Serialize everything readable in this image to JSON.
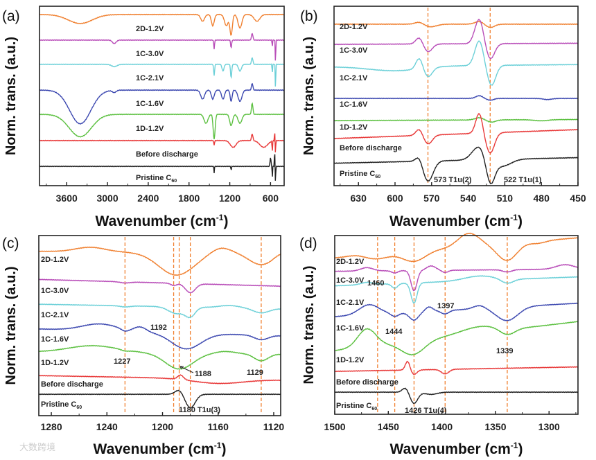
{
  "watermark": "大数跨境",
  "colors": {
    "2D-1.2V": "#f08030",
    "1C-3.0V": "#b84cb8",
    "1C-2.1V": "#6cd0d8",
    "1C-1.6V": "#3c48b0",
    "1D-1.2V": "#5cc040",
    "Before discharge": "#e83838",
    "Pristine C60": "#202020",
    "guide": "#f08030"
  },
  "chart_data": [
    {
      "panel": "(a)",
      "type": "line",
      "xlabel": "Wavenumber (cm-1)",
      "ylabel": "Norm. trans. (a.u.)",
      "xlim": [
        4000,
        400
      ],
      "ylim": [
        0,
        8
      ],
      "xticks": [
        3600,
        3000,
        2400,
        1800,
        1200,
        600
      ],
      "guides": [],
      "annotations": [],
      "series": [
        {
          "name": "2D-1.2V",
          "offset": 7.63,
          "slope": 0,
          "features": [
            [
              3400,
              -0.4,
              250
            ],
            [
              1600,
              -0.3,
              40
            ],
            [
              1450,
              -0.5,
              30
            ],
            [
              1250,
              -0.5,
              40
            ],
            [
              1180,
              -0.9,
              25
            ],
            [
              1050,
              -0.6,
              40
            ],
            [
              800,
              -0.3,
              60
            ]
          ]
        },
        {
          "name": "1C-3.0V",
          "offset": 6.49,
          "slope": 0,
          "features": [
            [
              2900,
              -0.15,
              40
            ],
            [
              1430,
              -0.4,
              8
            ],
            [
              1180,
              -0.35,
              10
            ],
            [
              870,
              0.3,
              15
            ],
            [
              575,
              -0.3,
              5
            ],
            [
              527,
              -1.2,
              5
            ]
          ]
        },
        {
          "name": "1C-2.1V",
          "offset": 5.41,
          "slope": 0,
          "features": [
            [
              2900,
              -0.1,
              60
            ],
            [
              1430,
              -0.5,
              10
            ],
            [
              1300,
              -0.3,
              20
            ],
            [
              1180,
              -0.6,
              12
            ],
            [
              1050,
              -0.3,
              30
            ],
            [
              870,
              0.3,
              15
            ],
            [
              575,
              -0.4,
              5
            ],
            [
              527,
              -1.3,
              5
            ]
          ]
        },
        {
          "name": "1C-1.6V",
          "offset": 4.26,
          "slope": 0,
          "features": [
            [
              3400,
              -1.5,
              220
            ],
            [
              2900,
              -0.1,
              40
            ],
            [
              1600,
              -0.4,
              40
            ],
            [
              1450,
              -0.4,
              30
            ],
            [
              1300,
              -0.4,
              30
            ],
            [
              1180,
              -0.5,
              20
            ],
            [
              1050,
              -0.5,
              40
            ],
            [
              870,
              0.3,
              15
            ]
          ]
        },
        {
          "name": "1D-1.2V",
          "offset": 3.18,
          "slope": 0,
          "features": [
            [
              3400,
              -1.0,
              230
            ],
            [
              1550,
              -0.4,
              40
            ],
            [
              1430,
              -1.1,
              20
            ],
            [
              1180,
              -0.5,
              30
            ],
            [
              1050,
              -0.4,
              40
            ],
            [
              870,
              0.5,
              15
            ]
          ]
        },
        {
          "name": "Before discharge",
          "offset": 2.01,
          "slope": 0,
          "features": [
            [
              1430,
              -0.2,
              8
            ],
            [
              1150,
              -0.3,
              60
            ],
            [
              870,
              0.3,
              15
            ],
            [
              700,
              -0.3,
              80
            ],
            [
              575,
              -0.5,
              5
            ],
            [
              540,
              0.6,
              4
            ],
            [
              527,
              -0.8,
              4
            ]
          ]
        },
        {
          "name": "Pristine C60",
          "offset": 0.86,
          "slope": 0,
          "features": [
            [
              1430,
              -0.3,
              5
            ],
            [
              1180,
              -0.2,
              5
            ],
            [
              600,
              0.4,
              10
            ],
            [
              575,
              -0.6,
              4
            ],
            [
              540,
              0.8,
              5
            ],
            [
              527,
              -1.0,
              4
            ]
          ]
        }
      ]
    },
    {
      "panel": "(b)",
      "type": "line",
      "xlabel": "Wavenumber (cm-1)",
      "ylabel": "Norm. trans. (a.u.)",
      "xlim": [
        650,
        450
      ],
      "ylim": [
        0,
        8
      ],
      "xticks": [
        630,
        600,
        570,
        540,
        510,
        480,
        450
      ],
      "guides": [
        573,
        522
      ],
      "annotations": [
        "573 T1u(2)",
        "522 T1u(1)"
      ],
      "series": [
        {
          "name": "2D-1.2V",
          "offset": 7.2,
          "slope": 0,
          "features": [
            [
              580,
              0.1,
              5
            ],
            [
              571,
              -0.12,
              7
            ],
            [
              531,
              0.12,
              5
            ],
            [
              522,
              -0.15,
              5
            ]
          ]
        },
        {
          "name": "1C-3.0V",
          "offset": 6.3,
          "slope": 0.05,
          "features": [
            [
              580,
              0.3,
              4
            ],
            [
              573,
              -0.35,
              5
            ],
            [
              531,
              1.1,
              5
            ],
            [
              522,
              -0.7,
              5
            ]
          ]
        },
        {
          "name": "1C-2.1V",
          "offset": 5.3,
          "slope": 0.1,
          "features": [
            [
              600,
              -0.2,
              30
            ],
            [
              580,
              0.5,
              4
            ],
            [
              573,
              -0.4,
              5
            ],
            [
              531,
              1.1,
              5
            ],
            [
              521,
              -0.9,
              5
            ]
          ]
        },
        {
          "name": "1C-1.6V",
          "offset": 3.89,
          "slope": 0,
          "features": [
            [
              531,
              0.12,
              4
            ],
            [
              522,
              -0.08,
              4
            ],
            [
              475,
              -0.05,
              5
            ]
          ]
        },
        {
          "name": "1D-1.2V",
          "offset": 2.9,
          "slope": 0.05,
          "features": [
            [
              531,
              0.1,
              5
            ],
            [
              521,
              -0.1,
              5
            ],
            [
              480,
              -0.05,
              8
            ]
          ]
        },
        {
          "name": "Before discharge",
          "offset": 2.1,
          "slope": 0.4,
          "features": [
            [
              580,
              0.3,
              4
            ],
            [
              573,
              -0.4,
              5
            ],
            [
              531,
              0.9,
              4
            ],
            [
              522,
              -0.9,
              5
            ]
          ]
        },
        {
          "name": "Pristine C60",
          "offset": 1.0,
          "slope": 0.25,
          "features": [
            [
              580,
              0.3,
              4
            ],
            [
              573,
              -0.9,
              6
            ],
            [
              531,
              0.6,
              8
            ],
            [
              522,
              -1.1,
              5
            ],
            [
              512,
              -0.3,
              10
            ]
          ]
        }
      ]
    },
    {
      "panel": "(c)",
      "type": "line",
      "xlabel": "Wavenumber (cm-1)",
      "ylabel": "Norm. trans. (a.u.)",
      "xlim": [
        1289,
        1115
      ],
      "ylim": [
        0,
        8
      ],
      "xticks": [
        1280,
        1240,
        1200,
        1160,
        1120
      ],
      "guides": [
        1227,
        1192,
        1188,
        1180,
        1129
      ],
      "annotations": [
        "1192",
        "1227",
        "1188",
        "1129",
        "1180 T1u(3)"
      ],
      "series": [
        {
          "name": "2D-1.2V",
          "offset": 7.3,
          "slope": -0.1,
          "features": [
            [
              1252,
              0.2,
              15
            ],
            [
              1190,
              -1.0,
              18
            ],
            [
              1158,
              0.25,
              10
            ],
            [
              1129,
              -0.5,
              12
            ],
            [
              1115,
              0.1,
              6
            ]
          ]
        },
        {
          "name": "1C-3.0V",
          "offset": 6.05,
          "slope": -0.3,
          "features": [
            [
              1227,
              -0.05,
              5
            ],
            [
              1192,
              -0.1,
              3
            ],
            [
              1180,
              -0.4,
              5
            ]
          ]
        },
        {
          "name": "1C-2.1V",
          "offset": 4.95,
          "slope": -0.2,
          "features": [
            [
              1227,
              -0.05,
              5
            ],
            [
              1190,
              -0.3,
              8
            ],
            [
              1180,
              -0.4,
              5
            ],
            [
              1152,
              0.1,
              10
            ],
            [
              1129,
              -0.2,
              8
            ]
          ]
        },
        {
          "name": "1C-1.6V",
          "offset": 3.85,
          "slope": -0.3,
          "features": [
            [
              1245,
              0.3,
              18
            ],
            [
              1227,
              -0.1,
              4
            ],
            [
              1216,
              0.2,
              6
            ],
            [
              1183,
              -0.7,
              15
            ],
            [
              1129,
              -0.2,
              7
            ]
          ]
        },
        {
          "name": "1D-1.2V",
          "offset": 2.83,
          "slope": -0.1,
          "features": [
            [
              1250,
              0.3,
              25
            ],
            [
              1227,
              -0.05,
              4
            ],
            [
              1188,
              -0.7,
              14
            ],
            [
              1155,
              0.1,
              10
            ],
            [
              1129,
              -0.3,
              7
            ]
          ]
        },
        {
          "name": "Before discharge",
          "offset": 1.78,
          "slope": -0.2,
          "features": [
            [
              1187,
              0.2,
              3
            ],
            [
              1160,
              -0.2,
              25
            ]
          ]
        },
        {
          "name": "Pristine C60",
          "offset": 0.95,
          "slope": 0,
          "features": [
            [
              1188,
              0.2,
              4
            ],
            [
              1180,
              -0.6,
              5
            ]
          ]
        }
      ]
    },
    {
      "panel": "(d)",
      "type": "line",
      "xlabel": "Wavenumber (cm-1)",
      "ylabel": "Norm. trans. (a.u.)",
      "xlim": [
        1500,
        1273
      ],
      "ylim": [
        0,
        8
      ],
      "xticks": [
        1500,
        1450,
        1400,
        1350,
        1300
      ],
      "guides": [
        1460,
        1444,
        1426,
        1397,
        1339
      ],
      "annotations": [
        "1460",
        "1397",
        "1444",
        "1339",
        "1426 T1u(4)"
      ],
      "series": [
        {
          "name": "2D-1.2V",
          "offset": 7.0,
          "slope": 0.9,
          "features": [
            [
              1480,
              0.05,
              10
            ],
            [
              1460,
              -0.2,
              15
            ],
            [
              1426,
              -0.45,
              15
            ],
            [
              1375,
              0.6,
              14
            ],
            [
              1339,
              -0.75,
              13
            ],
            [
              1310,
              -0.1,
              10
            ]
          ]
        },
        {
          "name": "1C-3.0V",
          "offset": 6.4,
          "slope": 0.1,
          "features": [
            [
              1470,
              0.15,
              8
            ],
            [
              1444,
              -0.1,
              4
            ],
            [
              1426,
              -0.9,
              4
            ],
            [
              1410,
              0.2,
              6
            ],
            [
              1397,
              -0.1,
              4
            ],
            [
              1339,
              -0.1,
              6
            ],
            [
              1285,
              0.2,
              12
            ]
          ]
        },
        {
          "name": "1C-2.1V",
          "offset": 5.75,
          "slope": 0.4,
          "features": [
            [
              1470,
              0.1,
              8
            ],
            [
              1444,
              -0.2,
              4
            ],
            [
              1426,
              -0.9,
              4
            ],
            [
              1365,
              0.2,
              20
            ],
            [
              1339,
              -0.2,
              8
            ]
          ]
        },
        {
          "name": "1C-1.6V",
          "offset": 4.37,
          "slope": 0.6,
          "features": [
            [
              1468,
              0.45,
              13
            ],
            [
              1444,
              -0.15,
              5
            ],
            [
              1426,
              -0.35,
              6
            ],
            [
              1412,
              0.2,
              5
            ],
            [
              1397,
              -0.15,
              5
            ],
            [
              1365,
              0.15,
              8
            ],
            [
              1339,
              -0.6,
              14
            ]
          ]
        },
        {
          "name": "1D-1.2V",
          "offset": 2.85,
          "slope": 1.3,
          "features": [
            [
              1470,
              0.8,
              12
            ],
            [
              1427,
              -0.6,
              15
            ],
            [
              1365,
              0.3,
              25
            ],
            [
              1339,
              -0.3,
              10
            ]
          ]
        },
        {
          "name": "Before discharge",
          "offset": 1.92,
          "slope": 0.2,
          "features": [
            [
              1432,
              0.4,
              3
            ],
            [
              1426,
              -0.2,
              4
            ],
            [
              1397,
              -0.2,
              5
            ]
          ]
        },
        {
          "name": "Pristine C60",
          "offset": 0.99,
          "slope": 0,
          "features": [
            [
              1434,
              0.2,
              4
            ],
            [
              1426,
              -0.5,
              5
            ],
            [
              1410,
              -0.1,
              8
            ]
          ]
        }
      ]
    }
  ],
  "labels": {
    "pristine_main": "Pristine C",
    "pristine_sub": "60",
    "ylabel": "Norm. trans. (a.u.)",
    "xlabel_main": "Wavenumber (cm",
    "xlabel_sup": "-1",
    "xlabel_close": ")"
  }
}
